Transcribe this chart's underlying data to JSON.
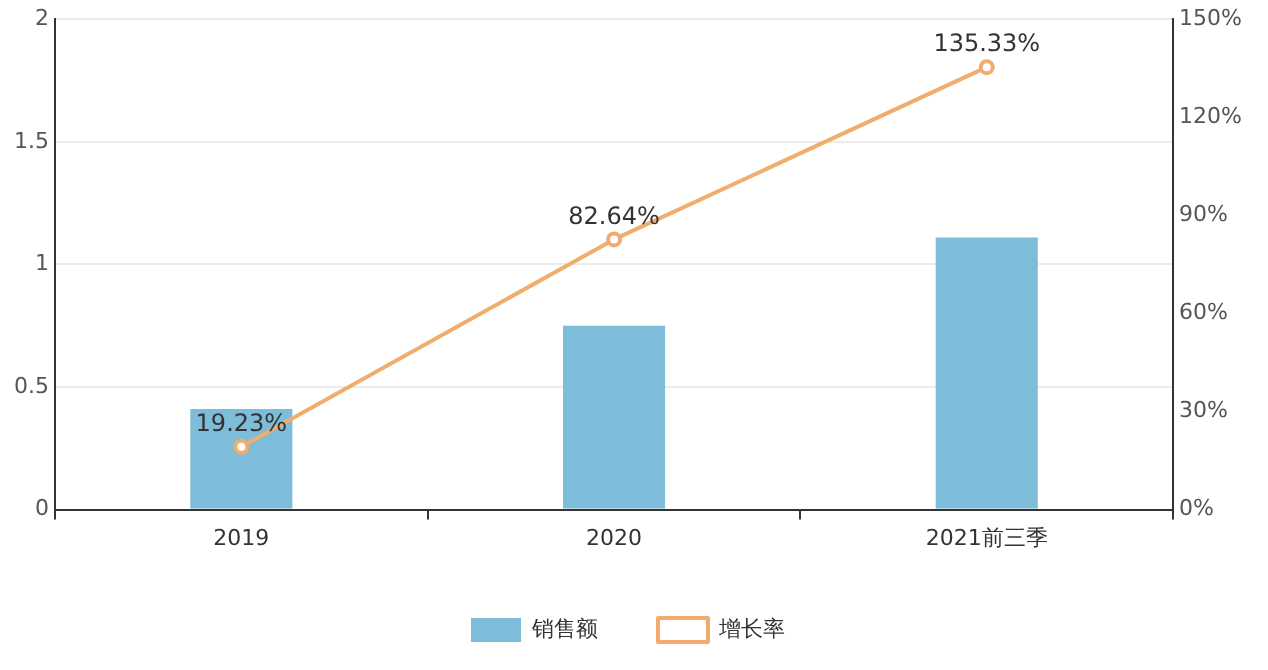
{
  "chart_data": {
    "type": "bar",
    "categories": [
      "2019",
      "2020",
      "2021前三季"
    ],
    "series": [
      {
        "name": "销售额",
        "color": "#7dbdda",
        "values": [
          0.41,
          0.75,
          1.11
        ]
      },
      {
        "name": "增长率",
        "type": "line",
        "axis": "y2",
        "color": "#f0ad6e",
        "values": [
          19.23,
          82.64,
          135.33
        ],
        "value_labels": [
          "19.23%",
          "82.64%",
          "135.33%"
        ],
        "marker": "circle"
      }
    ],
    "ylim": [
      0,
      2
    ],
    "yticks": [
      0,
      0.5,
      1,
      1.5,
      2
    ],
    "y2lim": [
      0,
      150
    ],
    "y2ticks": [
      {
        "value": 0,
        "label": "0%"
      },
      {
        "value": 30,
        "label": "30%"
      },
      {
        "value": 60,
        "label": "60%"
      },
      {
        "value": 90,
        "label": "90%"
      },
      {
        "value": 120,
        "label": "120%"
      },
      {
        "value": 150,
        "label": "150%"
      }
    ],
    "grid": "y",
    "legend": "bottom"
  }
}
